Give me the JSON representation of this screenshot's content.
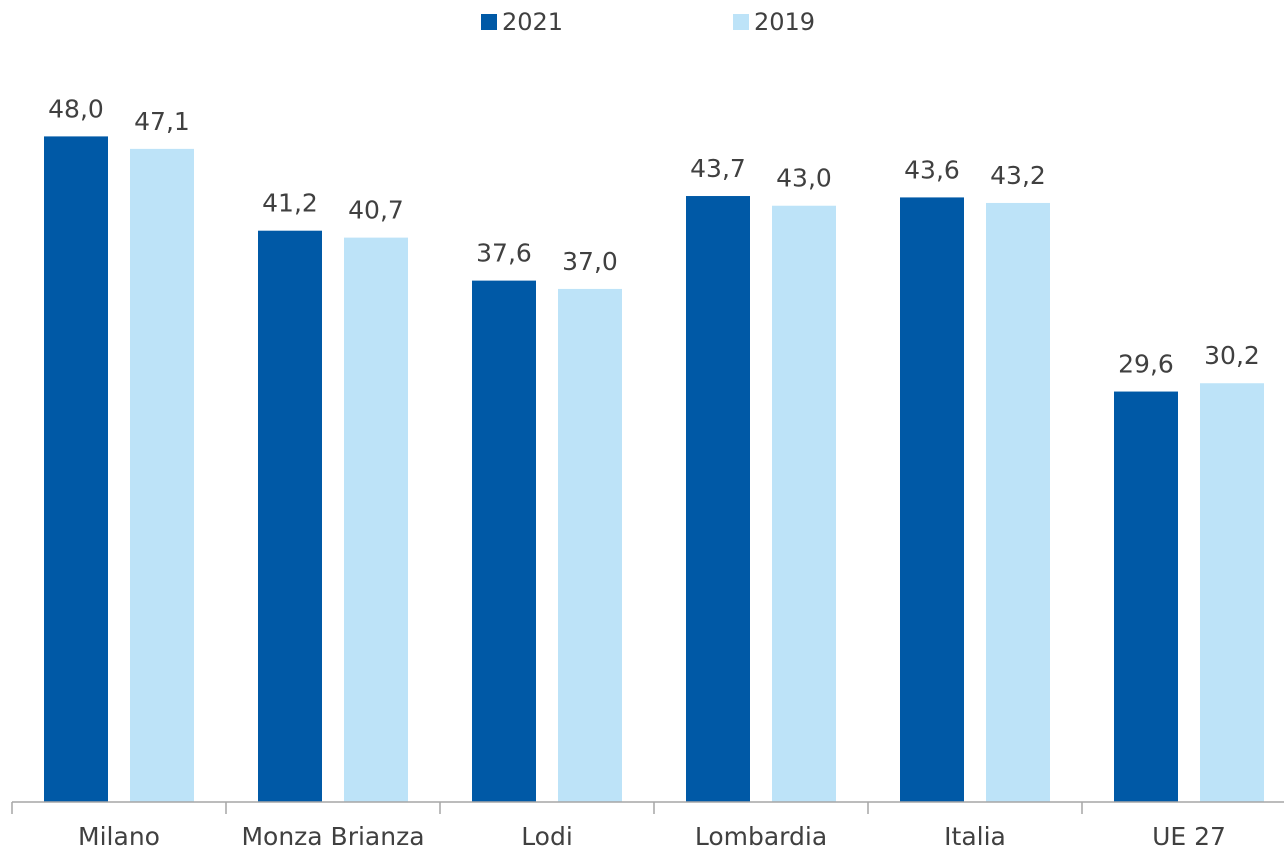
{
  "chart_data": {
    "type": "bar",
    "categories": [
      "Milano",
      "Monza Brianza",
      "Lodi",
      "Lombardia",
      "Italia",
      "UE 27"
    ],
    "series": [
      {
        "name": "2021",
        "color": "#0059a6",
        "values": [
          48.0,
          41.2,
          37.6,
          43.7,
          43.6,
          29.6
        ],
        "value_labels": [
          "48,0",
          "41,2",
          "37,6",
          "43,7",
          "43,6",
          "29,6"
        ]
      },
      {
        "name": "2019",
        "color": "#bde3f8",
        "values": [
          47.1,
          40.7,
          37.0,
          43.0,
          43.2,
          30.2
        ],
        "value_labels": [
          "47,1",
          "40,7",
          "37,0",
          "43,0",
          "43,2",
          "30,2"
        ]
      }
    ],
    "ylim": [
      0,
      60
    ],
    "legend": "top"
  }
}
